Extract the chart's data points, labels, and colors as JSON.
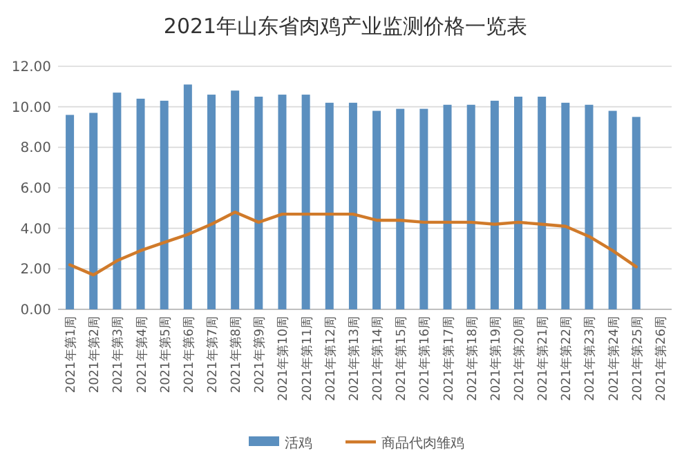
{
  "chart_data": {
    "type": "bar",
    "title": "2021年山东省肉鸡产业监测价格一览表",
    "categories": [
      "2021年第1周",
      "2021年第2周",
      "2021年第3周",
      "2021年第4周",
      "2021年第5周",
      "2021年第6周",
      "2021年第7周",
      "2021年第8周",
      "2021年第9周",
      "2021年第10周",
      "2021年第11周",
      "2021年第12周",
      "2021年第13周",
      "2021年第14周",
      "2021年第15周",
      "2021年第16周",
      "2021年第17周",
      "2021年第18周",
      "2021年第19周",
      "2021年第20周",
      "2021年第21周",
      "2021年第22周",
      "2021年第23周",
      "2021年第24周",
      "2021年第25周",
      "2021年第26周"
    ],
    "series": [
      {
        "name": "活鸡",
        "color": "#5b8fbf",
        "values": [
          9.6,
          9.7,
          10.7,
          10.4,
          10.3,
          11.1,
          10.6,
          10.8,
          10.5,
          10.6,
          10.6,
          10.2,
          10.2,
          9.8,
          9.9,
          9.9,
          10.1,
          10.1,
          10.3,
          10.5,
          10.5,
          10.2,
          10.1,
          9.8,
          9.5,
          null
        ]
      },
      {
        "name": "商品代肉雏鸡",
        "type": "line",
        "color": "#d07a2a",
        "values": [
          2.2,
          1.7,
          2.4,
          2.9,
          3.3,
          3.7,
          4.2,
          4.8,
          4.3,
          4.7,
          4.7,
          4.7,
          4.7,
          4.4,
          4.4,
          4.3,
          4.3,
          4.3,
          4.2,
          4.3,
          4.2,
          4.1,
          3.6,
          2.9,
          2.1,
          null
        ]
      }
    ],
    "ylim": [
      0,
      12
    ],
    "yticks": [
      {
        "value": 0,
        "label": "0.00"
      },
      {
        "value": 2,
        "label": "2.00"
      },
      {
        "value": 4,
        "label": "4.00"
      },
      {
        "value": 6,
        "label": "6.00"
      },
      {
        "value": 8,
        "label": "8.00"
      },
      {
        "value": 10,
        "label": "10.00"
      },
      {
        "value": 12,
        "label": "12.00"
      }
    ],
    "grid": "y",
    "legend": "bottom"
  }
}
